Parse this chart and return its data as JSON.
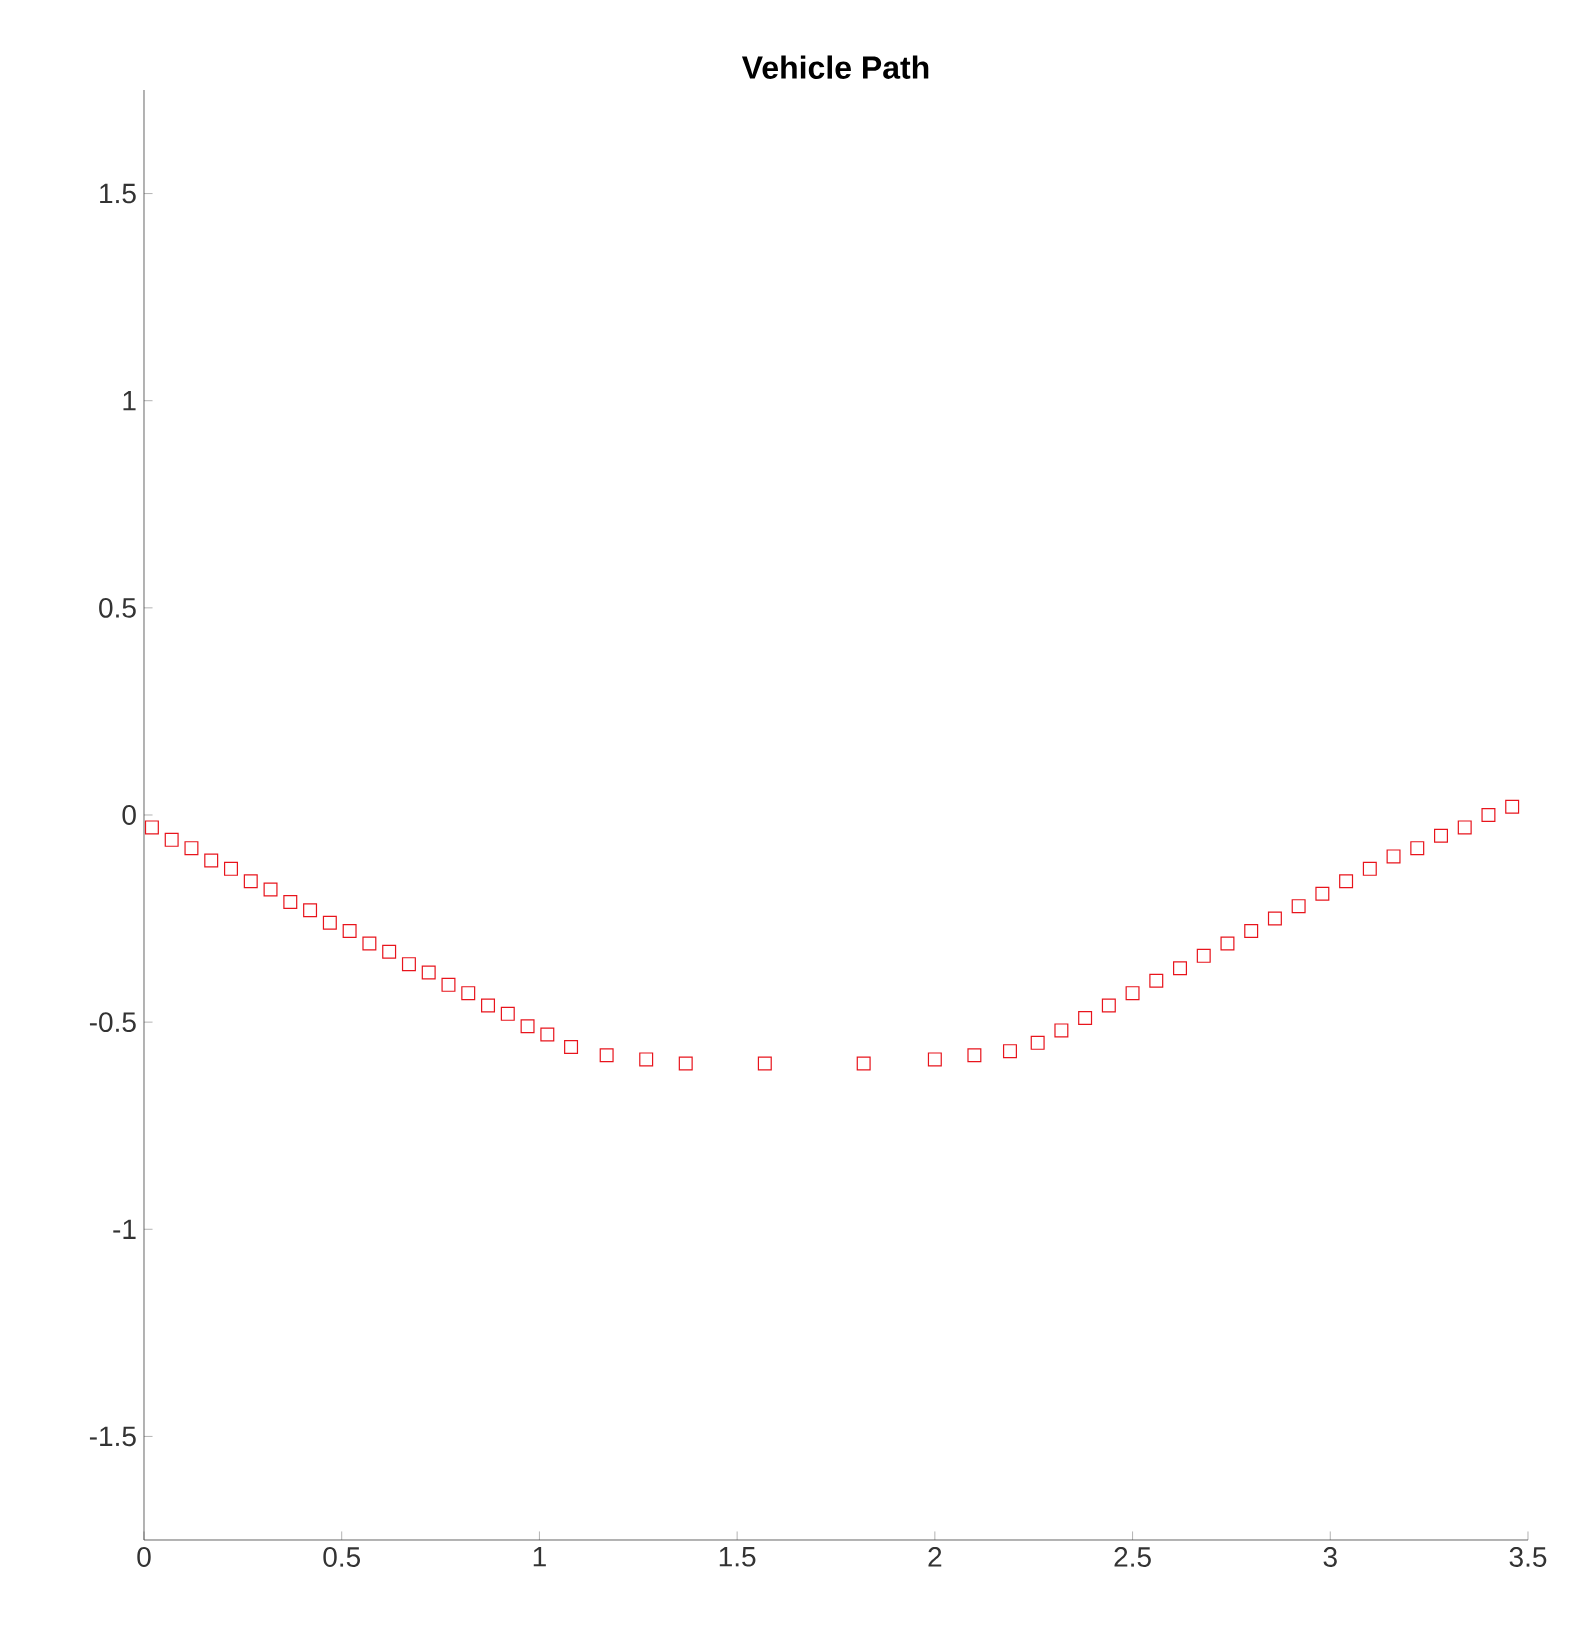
{
  "chart_data": {
    "type": "scatter",
    "title": "Vehicle Path",
    "marker": "square",
    "xlim": [
      0,
      3.5
    ],
    "ylim": [
      -1.75,
      1.75
    ],
    "xticks": [
      0,
      0.5,
      1,
      1.5,
      2,
      2.5,
      3,
      3.5
    ],
    "yticks": [
      -1.5,
      -1,
      -0.5,
      0,
      0.5,
      1,
      1.5
    ],
    "series": [
      {
        "color": "#e8141c",
        "x": [
          0.02,
          0.07,
          0.12,
          0.17,
          0.22,
          0.27,
          0.32,
          0.37,
          0.42,
          0.47,
          0.52,
          0.57,
          0.62,
          0.67,
          0.72,
          0.77,
          0.82,
          0.87,
          0.92,
          0.97,
          1.02,
          1.08,
          1.17,
          1.27,
          1.37,
          1.57,
          1.82,
          2.0,
          2.1,
          2.19,
          2.26,
          2.32,
          2.38,
          2.44,
          2.5,
          2.56,
          2.62,
          2.68,
          2.74,
          2.8,
          2.86,
          2.92,
          2.98,
          3.04,
          3.1,
          3.16,
          3.22,
          3.28,
          3.34,
          3.4,
          3.46
        ],
        "values": [
          -0.03,
          -0.06,
          -0.08,
          -0.11,
          -0.13,
          -0.16,
          -0.18,
          -0.21,
          -0.23,
          -0.26,
          -0.28,
          -0.31,
          -0.33,
          -0.36,
          -0.38,
          -0.41,
          -0.43,
          -0.46,
          -0.48,
          -0.51,
          -0.53,
          -0.56,
          -0.58,
          -0.59,
          -0.6,
          -0.6,
          -0.6,
          -0.59,
          -0.58,
          -0.57,
          -0.55,
          -0.52,
          -0.49,
          -0.46,
          -0.43,
          -0.4,
          -0.37,
          -0.34,
          -0.31,
          -0.28,
          -0.25,
          -0.22,
          -0.19,
          -0.16,
          -0.13,
          -0.1,
          -0.08,
          -0.05,
          -0.03,
          0.0,
          0.02
        ]
      }
    ]
  }
}
